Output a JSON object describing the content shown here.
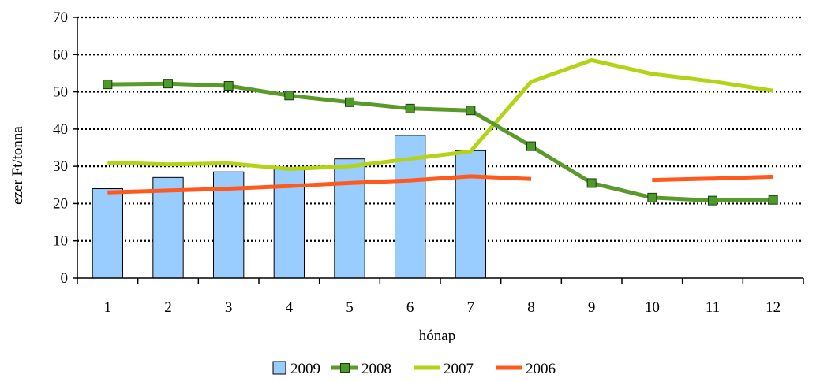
{
  "chart_data": {
    "type": "bar",
    "title": "",
    "xlabel": "hónap",
    "ylabel": "ezer Ft/tonna",
    "ylim": [
      0,
      70
    ],
    "y_ticks": [
      "0",
      "10",
      "20",
      "30",
      "40",
      "50",
      "60",
      "70"
    ],
    "categories": [
      "1",
      "2",
      "3",
      "4",
      "5",
      "6",
      "7",
      "8",
      "9",
      "10",
      "11",
      "12"
    ],
    "grid": "horizontal dotted",
    "legend": "bottom",
    "series": [
      {
        "name": "2009",
        "kind": "bar",
        "color": "#99ccff",
        "values": [
          24,
          27,
          28.5,
          29.5,
          32,
          38.3,
          34.2,
          null,
          null,
          null,
          null,
          null
        ]
      },
      {
        "name": "2008",
        "kind": "line-marker",
        "color": "#5a9a2a",
        "marker_color": "#4e9a28",
        "values": [
          52,
          52.2,
          51.6,
          49,
          47.2,
          45.5,
          45,
          35.4,
          25.5,
          21.6,
          20.8,
          21
        ]
      },
      {
        "name": "2007",
        "kind": "line",
        "color": "#b5d316",
        "values": [
          31,
          30.5,
          30.8,
          29.3,
          30,
          32,
          34,
          52.7,
          58.5,
          54.8,
          52.8,
          50.3
        ]
      },
      {
        "name": "2006",
        "kind": "line",
        "color": "#ff5a1e",
        "values": [
          23,
          23.5,
          24,
          24.7,
          25.5,
          26.2,
          27.3,
          26.6,
          null,
          26.3,
          26.7,
          27.2
        ]
      }
    ]
  }
}
